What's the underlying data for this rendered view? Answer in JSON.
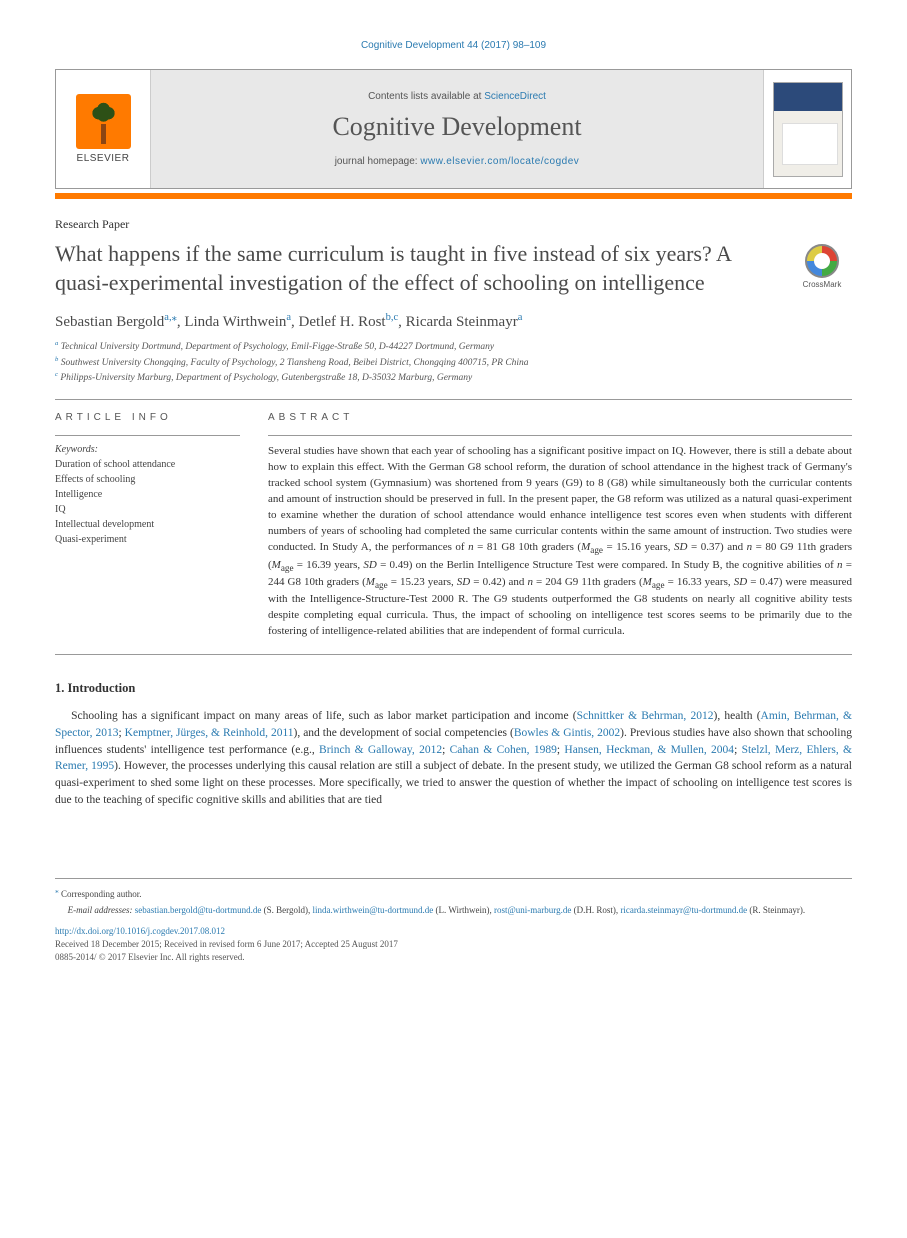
{
  "running_head": "Cognitive Development 44 (2017) 98–109",
  "masthead": {
    "contents_prefix": "Contents lists available at ",
    "contents_link": "ScienceDirect",
    "journal_name": "Cognitive Development",
    "homepage_prefix": "journal homepage: ",
    "homepage_url": "www.elsevier.com/locate/cogdev",
    "publisher_label": "ELSEVIER"
  },
  "article_type": "Research Paper",
  "title": "What happens if the same curriculum is taught in five instead of six years? A quasi-experimental investigation of the effect of schooling on intelligence",
  "crossmark_label": "CrossMark",
  "authors_html": "Sebastian Bergold<sup>a,</sup><sup class='ast'>⁎</sup>, Linda Wirthwein<sup>a</sup>, Detlef H. Rost<sup>b,c</sup>, Ricarda Steinmayr<sup>a</sup>",
  "affiliations": [
    {
      "sup": "a",
      "text": "Technical University Dortmund, Department of Psychology, Emil-Figge-Straße 50, D-44227 Dortmund, Germany"
    },
    {
      "sup": "b",
      "text": "Southwest University Chongqing, Faculty of Psychology, 2 Tiansheng Road, Beibei District, Chongqing 400715, PR China"
    },
    {
      "sup": "c",
      "text": "Philipps-University Marburg, Department of Psychology, Gutenbergstraße 18, D-35032 Marburg, Germany"
    }
  ],
  "info_head": "ARTICLE INFO",
  "abstract_head": "ABSTRACT",
  "keywords_label": "Keywords:",
  "keywords": [
    "Duration of school attendance",
    "Effects of schooling",
    "Intelligence",
    "IQ",
    "Intellectual development",
    "Quasi-experiment"
  ],
  "abstract": "Several studies have shown that each year of schooling has a significant positive impact on IQ. However, there is still a debate about how to explain this effect. With the German G8 school reform, the duration of school attendance in the highest track of Germany's tracked school system (Gymnasium) was shortened from 9 years (G9) to 8 (G8) while simultaneously both the curricular contents and amount of instruction should be preserved in full. In the present paper, the G8 reform was utilized as a natural quasi-experiment to examine whether the duration of school attendance would enhance intelligence test scores even when students with different numbers of years of schooling had completed the same curricular contents within the same amount of instruction. Two studies were conducted. In Study A, the performances of n = 81 G8 10th graders (Mage = 15.16 years, SD = 0.37) and n = 80 G9 11th graders (Mage = 16.39 years, SD = 0.49) on the Berlin Intelligence Structure Test were compared. In Study B, the cognitive abilities of n = 244 G8 10th graders (Mage = 15.23 years, SD = 0.42) and n = 204 G9 11th graders (Mage = 16.33 years, SD = 0.47) were measured with the Intelligence-Structure-Test 2000 R. The G9 students outperformed the G8 students on nearly all cognitive ability tests despite completing equal curricula. Thus, the impact of schooling on intelligence test scores seems to be primarily due to the fostering of intelligence-related abilities that are independent of formal curricula.",
  "intro_head": "1. Introduction",
  "intro_para_html": "Schooling has a significant impact on many areas of life, such as labor market participation and income (<a href='#'>Schnittker & Behrman, 2012</a>), health (<a href='#'>Amin, Behrman, & Spector, 2013</a>; <a href='#'>Kemptner, Jürges, & Reinhold, 2011</a>), and the development of social competencies (<a href='#'>Bowles & Gintis, 2002</a>). Previous studies have also shown that schooling influences students' intelligence test performance (e.g., <a href='#'>Brinch & Galloway, 2012</a>; <a href='#'>Cahan & Cohen, 1989</a>; <a href='#'>Hansen, Heckman, & Mullen, 2004</a>; <a href='#'>Stelzl, Merz, Ehlers, & Remer, 1995</a>). However, the processes underlying this causal relation are still a subject of debate. In the present study, we utilized the German G8 school reform as a natural quasi-experiment to shed some light on these processes. More specifically, we tried to answer the question of whether the impact of schooling on intelligence test scores is due to the teaching of specific cognitive skills and abilities that are tied",
  "footnotes": {
    "corr_marker": "⁎",
    "corr_text": "Corresponding author.",
    "emails_label": "E-mail addresses:",
    "emails": [
      {
        "addr": "sebastian.bergold@tu-dortmund.de",
        "who": "(S. Bergold)"
      },
      {
        "addr": "linda.wirthwein@tu-dortmund.de",
        "who": "(L. Wirthwein)"
      },
      {
        "addr": "rost@uni-marburg.de",
        "who": "(D.H. Rost)"
      },
      {
        "addr": "ricarda.steinmayr@tu-dortmund.de",
        "who": "(R. Steinmayr)"
      }
    ]
  },
  "doi": {
    "url": "http://dx.doi.org/10.1016/j.cogdev.2017.08.012",
    "history": "Received 18 December 2015; Received in revised form 6 June 2017; Accepted 25 August 2017",
    "issn_copyright": "0885-2014/ © 2017 Elsevier Inc. All rights reserved."
  },
  "colors": {
    "link": "#2a7ab0",
    "accent": "#ff7a00",
    "text": "#333333",
    "rule": "#999999",
    "masthead_bg": "#e8e8e8"
  }
}
